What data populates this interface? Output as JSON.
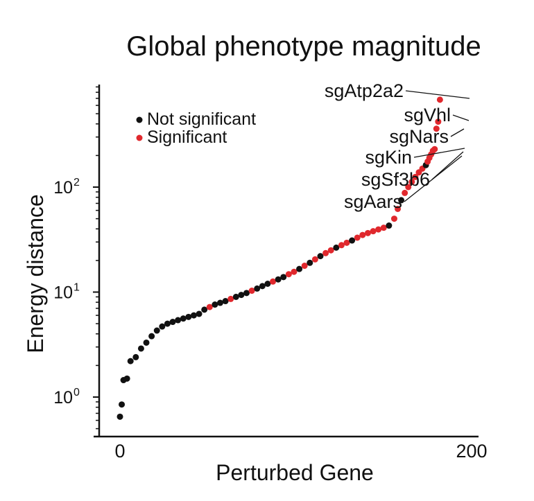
{
  "chart_data": {
    "type": "scatter",
    "title": "Global phenotype magnitude",
    "xlabel": "Perturbed Gene",
    "ylabel": "Energy distance",
    "x_ticks": [
      {
        "value": 0,
        "label": "0"
      },
      {
        "value": 200,
        "label": "200"
      }
    ],
    "y_scale": "log",
    "y_ticks": [
      {
        "value": 1,
        "base": "10",
        "exp": "0"
      },
      {
        "value": 10,
        "base": "10",
        "exp": "1"
      },
      {
        "value": 100,
        "base": "10",
        "exp": "2"
      }
    ],
    "xlim": [
      -10,
      208
    ],
    "ylim": [
      0.5,
      1000
    ],
    "grid": false,
    "legend_position": "top-left",
    "legend": [
      {
        "label": "Not significant",
        "color": "#111111"
      },
      {
        "label": "Significant",
        "color": "#e0282d"
      }
    ],
    "points": [
      {
        "x": 0,
        "y": 0.65,
        "sig": false
      },
      {
        "x": 1,
        "y": 0.85,
        "sig": false
      },
      {
        "x": 2,
        "y": 1.45,
        "sig": false
      },
      {
        "x": 4,
        "y": 1.5,
        "sig": false
      },
      {
        "x": 6,
        "y": 2.2,
        "sig": false
      },
      {
        "x": 9,
        "y": 2.4,
        "sig": false
      },
      {
        "x": 12,
        "y": 2.9,
        "sig": false
      },
      {
        "x": 15,
        "y": 3.3,
        "sig": false
      },
      {
        "x": 18,
        "y": 3.8,
        "sig": false
      },
      {
        "x": 21,
        "y": 4.3,
        "sig": false
      },
      {
        "x": 24,
        "y": 4.7,
        "sig": false
      },
      {
        "x": 27,
        "y": 5.0,
        "sig": false
      },
      {
        "x": 30,
        "y": 5.2,
        "sig": false
      },
      {
        "x": 33,
        "y": 5.4,
        "sig": false
      },
      {
        "x": 36,
        "y": 5.6,
        "sig": false
      },
      {
        "x": 39,
        "y": 5.8,
        "sig": false
      },
      {
        "x": 42,
        "y": 6.0,
        "sig": false
      },
      {
        "x": 45,
        "y": 6.2,
        "sig": false
      },
      {
        "x": 48,
        "y": 6.8,
        "sig": false
      },
      {
        "x": 51,
        "y": 7.2,
        "sig": true
      },
      {
        "x": 54,
        "y": 7.6,
        "sig": false
      },
      {
        "x": 57,
        "y": 7.9,
        "sig": false
      },
      {
        "x": 60,
        "y": 8.2,
        "sig": false
      },
      {
        "x": 63,
        "y": 8.6,
        "sig": true
      },
      {
        "x": 66,
        "y": 9.0,
        "sig": false
      },
      {
        "x": 69,
        "y": 9.4,
        "sig": false
      },
      {
        "x": 72,
        "y": 9.8,
        "sig": false
      },
      {
        "x": 75,
        "y": 10.3,
        "sig": true
      },
      {
        "x": 78,
        "y": 10.8,
        "sig": false
      },
      {
        "x": 81,
        "y": 11.4,
        "sig": false
      },
      {
        "x": 84,
        "y": 12.0,
        "sig": false
      },
      {
        "x": 87,
        "y": 12.6,
        "sig": true
      },
      {
        "x": 90,
        "y": 13.2,
        "sig": false
      },
      {
        "x": 93,
        "y": 13.9,
        "sig": false
      },
      {
        "x": 96,
        "y": 14.8,
        "sig": true
      },
      {
        "x": 99,
        "y": 15.6,
        "sig": true
      },
      {
        "x": 102,
        "y": 16.6,
        "sig": false
      },
      {
        "x": 105,
        "y": 17.8,
        "sig": true
      },
      {
        "x": 108,
        "y": 19.0,
        "sig": false
      },
      {
        "x": 111,
        "y": 20.5,
        "sig": true
      },
      {
        "x": 114,
        "y": 22.0,
        "sig": false
      },
      {
        "x": 117,
        "y": 23.5,
        "sig": true
      },
      {
        "x": 120,
        "y": 25.0,
        "sig": true
      },
      {
        "x": 123,
        "y": 26.5,
        "sig": false
      },
      {
        "x": 126,
        "y": 28.0,
        "sig": true
      },
      {
        "x": 129,
        "y": 29.5,
        "sig": true
      },
      {
        "x": 132,
        "y": 31.0,
        "sig": false
      },
      {
        "x": 135,
        "y": 33.0,
        "sig": true
      },
      {
        "x": 138,
        "y": 35.0,
        "sig": true
      },
      {
        "x": 141,
        "y": 36.5,
        "sig": true
      },
      {
        "x": 144,
        "y": 38.0,
        "sig": true
      },
      {
        "x": 147,
        "y": 39.5,
        "sig": true
      },
      {
        "x": 150,
        "y": 41.0,
        "sig": true
      },
      {
        "x": 153,
        "y": 43.0,
        "sig": false
      },
      {
        "x": 156,
        "y": 50.0,
        "sig": true
      },
      {
        "x": 158,
        "y": 62.0,
        "sig": true
      },
      {
        "x": 160,
        "y": 75.0,
        "sig": false
      },
      {
        "x": 162,
        "y": 88.0,
        "sig": true
      },
      {
        "x": 164,
        "y": 100.0,
        "sig": true
      },
      {
        "x": 166,
        "y": 112.0,
        "sig": true
      },
      {
        "x": 168,
        "y": 125.0,
        "sig": true
      },
      {
        "x": 170,
        "y": 138.0,
        "sig": true
      },
      {
        "x": 172,
        "y": 150.0,
        "sig": true
      },
      {
        "x": 174,
        "y": 162.0,
        "sig": false
      },
      {
        "x": 175,
        "y": 175.0,
        "sig": true
      },
      {
        "x": 176,
        "y": 190.0,
        "sig": true
      },
      {
        "x": 177,
        "y": 205.0,
        "sig": true
      },
      {
        "x": 178,
        "y": 222.0,
        "sig": true
      },
      {
        "x": 179,
        "y": 230.0,
        "sig": true
      },
      {
        "x": 180,
        "y": 360.0,
        "sig": true
      },
      {
        "x": 181,
        "y": 420.0,
        "sig": true
      },
      {
        "x": 182,
        "y": 680.0,
        "sig": true
      }
    ],
    "annotations": [
      {
        "label": "sgAtp2a2",
        "x": 182,
        "y": 680.0
      },
      {
        "label": "sgVhl",
        "x": 181,
        "y": 420.0
      },
      {
        "label": "sgNars",
        "x": 180,
        "y": 360.0
      },
      {
        "label": "sgKin",
        "x": 179,
        "y": 230.0
      },
      {
        "label": "sgSf3b6",
        "x": 178,
        "y": 222.0
      },
      {
        "label": "sgAars",
        "x": 177,
        "y": 205.0
      }
    ]
  }
}
